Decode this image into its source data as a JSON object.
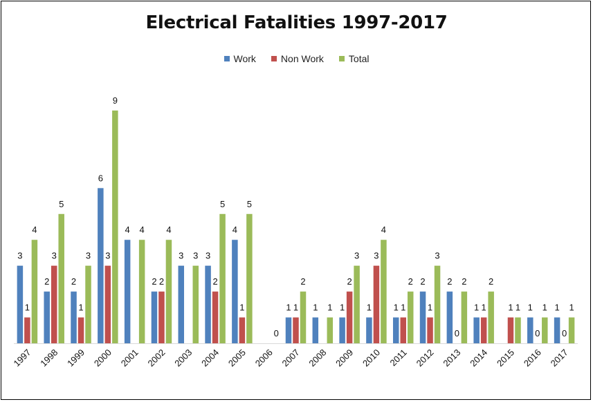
{
  "chart_data": {
    "type": "bar",
    "title": "Electrical Fatalities 1997-2017",
    "xlabel": "",
    "ylabel": "",
    "ylim": [
      0,
      9
    ],
    "grid": false,
    "legend_position": "top",
    "categories": [
      "1997",
      "1998",
      "1999",
      "2000",
      "2001",
      "2002",
      "2003",
      "2004",
      "2005",
      "2006",
      "2007",
      "2008",
      "2009",
      "2010",
      "2011",
      "2012",
      "2013",
      "2014",
      "2015",
      "2016",
      "2017"
    ],
    "series": [
      {
        "name": "Work",
        "color": "#4f81bd",
        "values": [
          3,
          2,
          2,
          6,
          4,
          2,
          3,
          3,
          4,
          null,
          1,
          1,
          1,
          1,
          1,
          2,
          2,
          1,
          null,
          1,
          1
        ]
      },
      {
        "name": "Non Work",
        "color": "#c0504d",
        "values": [
          1,
          3,
          1,
          3,
          null,
          2,
          null,
          2,
          1,
          null,
          1,
          null,
          2,
          3,
          1,
          1,
          0,
          1,
          1,
          0,
          0
        ]
      },
      {
        "name": "Total",
        "color": "#9bbb59",
        "values": [
          4,
          5,
          3,
          9,
          4,
          4,
          3,
          5,
          5,
          0,
          2,
          1,
          3,
          4,
          2,
          3,
          2,
          2,
          1,
          1,
          1
        ]
      }
    ]
  }
}
